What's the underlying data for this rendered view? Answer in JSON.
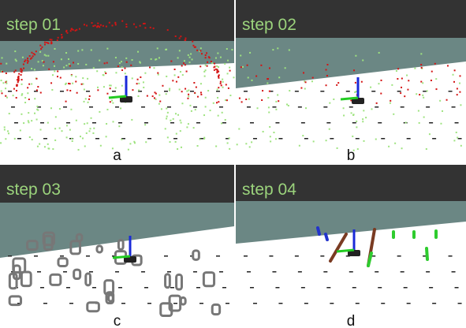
{
  "panels": [
    {
      "title": "step 01",
      "caption": "a"
    },
    {
      "title": "step 02",
      "caption": "b"
    },
    {
      "title": "step 03",
      "caption": "c"
    },
    {
      "title": "step 04",
      "caption": "d"
    }
  ]
}
